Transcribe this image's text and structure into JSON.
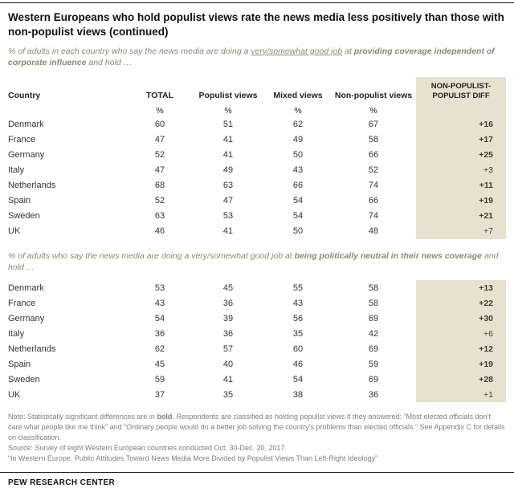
{
  "title": "Western Europeans who hold populist views rate the news media less positively than those with non-populist views (continued)",
  "colors": {
    "diff_column_bg": "#e8e1cf",
    "description_text": "#8c8972",
    "note_text": "#7e7e7e"
  },
  "table_header": {
    "country": "Country",
    "total": "TOTAL",
    "populist": "Populist views",
    "mixed": "Mixed views",
    "nonpopulist": "Non-populist views",
    "diff": "NON-POPULIST-POPULIST DIFF",
    "percent": "%"
  },
  "chart_data": [
    {
      "type": "table",
      "description": {
        "pre": "% of adults in each country who say the news media are doing a ",
        "underline": "very/somewhat good job",
        "mid": " at ",
        "bold": "providing coverage independent of corporate influence",
        "post": " and hold …"
      },
      "columns": [
        "Country",
        "TOTAL %",
        "Populist views %",
        "Mixed views %",
        "Non-populist views %",
        "NON-POPULIST-POPULIST DIFF"
      ],
      "rows": [
        {
          "country": "Denmark",
          "total": 60,
          "populist": 51,
          "mixed": 62,
          "nonpopulist": 67,
          "diff": "+16",
          "diff_bold": true
        },
        {
          "country": "France",
          "total": 47,
          "populist": 41,
          "mixed": 49,
          "nonpopulist": 58,
          "diff": "+17",
          "diff_bold": true
        },
        {
          "country": "Germany",
          "total": 52,
          "populist": 41,
          "mixed": 50,
          "nonpopulist": 66,
          "diff": "+25",
          "diff_bold": true
        },
        {
          "country": "Italy",
          "total": 47,
          "populist": 49,
          "mixed": 43,
          "nonpopulist": 52,
          "diff": "+3",
          "diff_bold": false
        },
        {
          "country": "Netherlands",
          "total": 68,
          "populist": 63,
          "mixed": 66,
          "nonpopulist": 74,
          "diff": "+11",
          "diff_bold": true
        },
        {
          "country": "Spain",
          "total": 52,
          "populist": 47,
          "mixed": 54,
          "nonpopulist": 66,
          "diff": "+19",
          "diff_bold": true
        },
        {
          "country": "Sweden",
          "total": 63,
          "populist": 53,
          "mixed": 54,
          "nonpopulist": 74,
          "diff": "+21",
          "diff_bold": true
        },
        {
          "country": "UK",
          "total": 46,
          "populist": 41,
          "mixed": 50,
          "nonpopulist": 48,
          "diff": "+7",
          "diff_bold": false
        }
      ]
    },
    {
      "type": "table",
      "description": {
        "pre": "% of adults who say the news media are doing a very/somewhat good job at ",
        "bold": "being politically neutral in their news coverage",
        "post": " and hold …"
      },
      "columns": [
        "Country",
        "TOTAL %",
        "Populist views %",
        "Mixed views %",
        "Non-populist views %",
        "NON-POPULIST-POPULIST DIFF"
      ],
      "rows": [
        {
          "country": "Denmark",
          "total": 53,
          "populist": 45,
          "mixed": 55,
          "nonpopulist": 58,
          "diff": "+13",
          "diff_bold": true
        },
        {
          "country": "France",
          "total": 43,
          "populist": 36,
          "mixed": 43,
          "nonpopulist": 58,
          "diff": "+22",
          "diff_bold": true
        },
        {
          "country": "Germany",
          "total": 54,
          "populist": 39,
          "mixed": 56,
          "nonpopulist": 69,
          "diff": "+30",
          "diff_bold": true
        },
        {
          "country": "Italy",
          "total": 36,
          "populist": 36,
          "mixed": 35,
          "nonpopulist": 42,
          "diff": "+6",
          "diff_bold": false
        },
        {
          "country": "Netherlands",
          "total": 62,
          "populist": 57,
          "mixed": 60,
          "nonpopulist": 69,
          "diff": "+12",
          "diff_bold": true
        },
        {
          "country": "Spain",
          "total": 45,
          "populist": 40,
          "mixed": 46,
          "nonpopulist": 59,
          "diff": "+19",
          "diff_bold": true
        },
        {
          "country": "Sweden",
          "total": 59,
          "populist": 41,
          "mixed": 54,
          "nonpopulist": 69,
          "diff": "+28",
          "diff_bold": true
        },
        {
          "country": "UK",
          "total": 37,
          "populist": 35,
          "mixed": 38,
          "nonpopulist": 36,
          "diff": "+1",
          "diff_bold": false
        }
      ]
    }
  ],
  "note": {
    "pre": "Note: Statistically significant differences are in ",
    "bold": "bold",
    "post": ". Respondents are classified as holding populist views if they answered: “Most elected officials don’t care what people like me think” and “Ordinary people would do a better job solving the country’s problems than elected officials.” See Appendix C for details on classification."
  },
  "source": "Source: Survey of eight Western European countries conducted Oct. 30-Dec. 20, 2017.",
  "report_title": "“In Western Europe, Public Attitudes Toward News Media More Divided by Populist Views Than Left-Right Ideology”",
  "footer": "PEW RESEARCH CENTER"
}
